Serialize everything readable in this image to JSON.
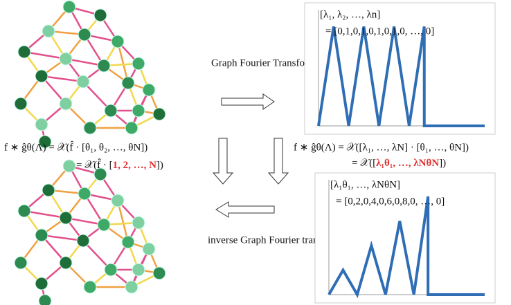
{
  "labels": {
    "forward": "Graph Fourier Transform",
    "inverse": "inverse Graph Fourier transform"
  },
  "left_formula": {
    "line1": "f ∗ ĝθ(Λ) = 𝒳(f̂ · [θ₁, θ₂, …, θN])",
    "line2_start": "= 𝒳(f̂ · [",
    "line2_red": "1, 2, …, N",
    "line2_end": "])"
  },
  "right_formula": {
    "line1": "f ∗ ĝθ(Λ) = 𝒳([λ₁, …, λN] · [θ₁, …, θN])",
    "line2_start": "= 𝒳([",
    "line2_red": "λ₁θ₁, …, λNθN",
    "line2_end": "])"
  },
  "chart_data": [
    {
      "type": "line",
      "title": "[λ₁, λ₂, …, λn]",
      "subtitle": "= [0,1,0,1,0,1,0,1,0, …, 0]",
      "color": "#2f6db5",
      "x": [
        0,
        1,
        2,
        3,
        4,
        5,
        6,
        7,
        7,
        11
      ],
      "values": [
        0,
        1,
        0,
        1,
        0,
        1,
        0,
        1,
        0,
        0
      ],
      "xlim": [
        0,
        11
      ],
      "ylim": [
        0,
        1.1
      ]
    },
    {
      "type": "line",
      "title": "[λ₁θ₁, …, λNθN]",
      "subtitle": "= [0,2,0,4,0,6,0,8,0, …, 0]",
      "color": "#2f6db5",
      "x": [
        0,
        1,
        2,
        3,
        4,
        5,
        6,
        7,
        7,
        11
      ],
      "values": [
        0,
        2,
        0,
        4,
        0,
        6,
        0,
        8,
        0,
        0
      ],
      "xlim": [
        0,
        11
      ],
      "ylim": [
        0,
        8.8
      ]
    }
  ]
}
